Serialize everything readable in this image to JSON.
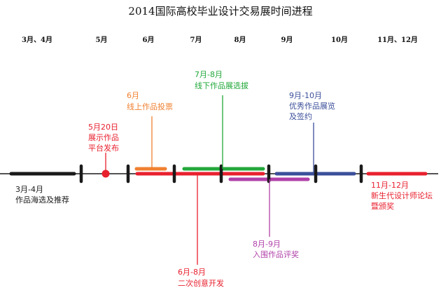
{
  "title": "2014国际高校毕业设计交易展时间进程",
  "months": [
    "3月、4月",
    "5月",
    "6月",
    "7月",
    "8月",
    "9月",
    "10月",
    "11月、12月"
  ],
  "events": {
    "phase1": [
      "3月-4月",
      "作品海选及推荐"
    ],
    "may20": [
      "5月20日",
      "展示作品",
      "平台发布"
    ],
    "june": [
      "6月",
      "线上作品投票"
    ],
    "jul_aug": [
      "7月-8月",
      "线下作品展选拔"
    ],
    "jun_aug": [
      "6月-8月",
      "二次创意开发"
    ],
    "aug_sep": [
      "8月-9月",
      "入围作品评奖"
    ],
    "sep_oct": [
      "9月-10月",
      "优秀作品展览",
      "及签约"
    ],
    "nov_dec": [
      "11月-12月",
      "新生代设计师论坛",
      "暨颁奖"
    ]
  },
  "colors": {
    "black": "#1a1a1a",
    "red": "#e8202e",
    "orange": "#f08030",
    "green": "#22a83a",
    "blue": "#3b4f9a",
    "purple": "#b040a8"
  }
}
